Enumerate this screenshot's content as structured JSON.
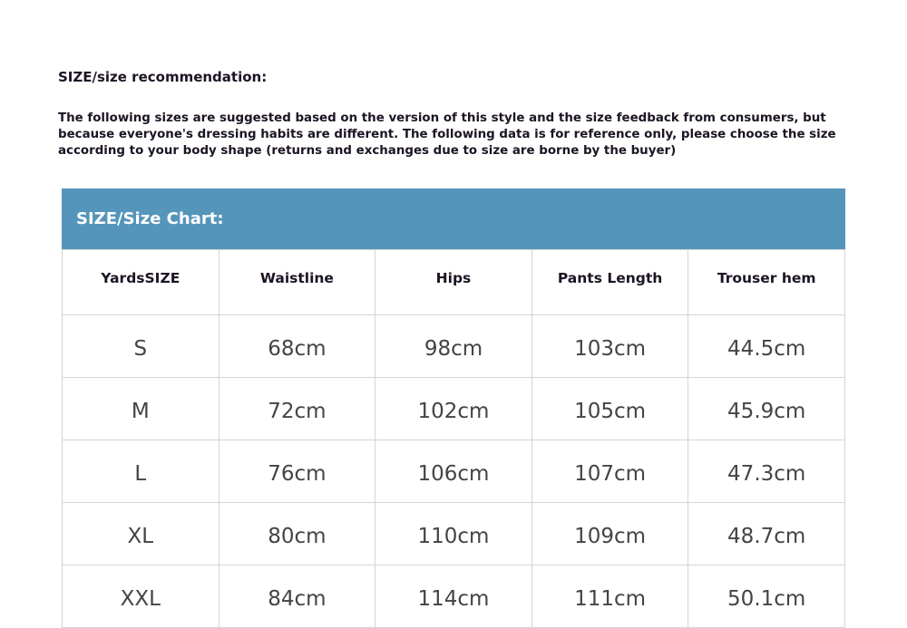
{
  "title": "SIZE/size recommendation:",
  "description": "The following sizes are suggested based on the version of this style and the size feedback from consumers, but because everyone's dressing habits are different. The following data is for reference only, please choose the size according to your body shape (returns and exchanges due to size are borne by the buyer)",
  "chart": {
    "banner": "SIZE/Size Chart:",
    "banner_color": "#5595bb",
    "columns": [
      "YardsSIZE",
      "Waistline",
      "Hips",
      "Pants Length",
      "Trouser hem"
    ],
    "rows": [
      [
        "S",
        "68cm",
        "98cm",
        "103cm",
        "44.5cm"
      ],
      [
        "M",
        "72cm",
        "102cm",
        "105cm",
        "45.9cm"
      ],
      [
        "L",
        "76cm",
        "106cm",
        "107cm",
        "47.3cm"
      ],
      [
        "XL",
        "80cm",
        "110cm",
        "109cm",
        "48.7cm"
      ],
      [
        "XXL",
        "84cm",
        "114cm",
        "111cm",
        "50.1cm"
      ]
    ]
  }
}
